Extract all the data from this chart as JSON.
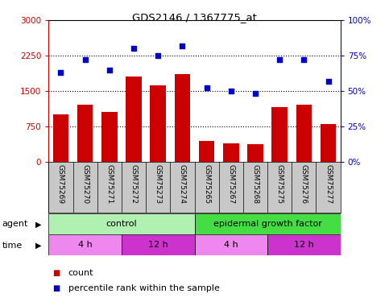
{
  "title": "GDS2146 / 1367775_at",
  "samples": [
    "GSM75269",
    "GSM75270",
    "GSM75271",
    "GSM75272",
    "GSM75273",
    "GSM75274",
    "GSM75265",
    "GSM75267",
    "GSM75268",
    "GSM75275",
    "GSM75276",
    "GSM75277"
  ],
  "counts": [
    1000,
    1200,
    1050,
    1800,
    1620,
    1850,
    430,
    390,
    370,
    1150,
    1200,
    800
  ],
  "percentile_ranks": [
    63,
    72,
    65,
    80,
    75,
    82,
    52,
    50,
    48,
    72,
    72,
    57
  ],
  "bar_color": "#cc0000",
  "dot_color": "#0000cc",
  "ylim_left": [
    0,
    3000
  ],
  "ylim_right": [
    0,
    100
  ],
  "yticks_left": [
    0,
    750,
    1500,
    2250,
    3000
  ],
  "yticks_right": [
    0,
    25,
    50,
    75,
    100
  ],
  "ytick_labels_left": [
    "0",
    "750",
    "1500",
    "2250",
    "3000"
  ],
  "ytick_labels_right": [
    "0%",
    "25%",
    "50%",
    "75%",
    "100%"
  ],
  "agent_groups": [
    {
      "label": "control",
      "start": 0,
      "end": 6,
      "color": "#b0f0b0"
    },
    {
      "label": "epidermal growth factor",
      "start": 6,
      "end": 12,
      "color": "#44dd44"
    }
  ],
  "time_groups": [
    {
      "label": "4 h",
      "start": 0,
      "end": 3,
      "color": "#ee88ee"
    },
    {
      "label": "12 h",
      "start": 3,
      "end": 6,
      "color": "#cc33cc"
    },
    {
      "label": "4 h",
      "start": 6,
      "end": 9,
      "color": "#ee88ee"
    },
    {
      "label": "12 h",
      "start": 9,
      "end": 12,
      "color": "#cc33cc"
    }
  ],
  "sample_bg_color": "#c8c8c8",
  "legend_count_color": "#cc0000",
  "legend_dot_color": "#0000cc",
  "axis_label_color_left": "#cc0000",
  "axis_label_color_right": "#0000cc"
}
